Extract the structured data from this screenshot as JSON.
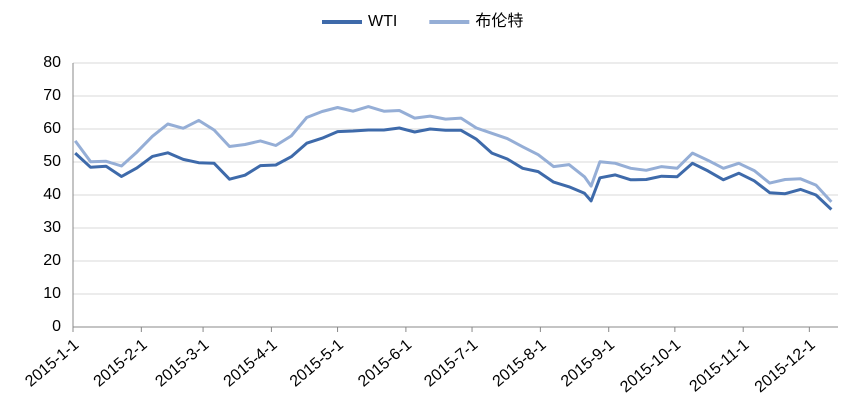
{
  "chart_data": {
    "type": "line",
    "x": [
      "2015-1-2",
      "2015-1-9",
      "2015-1-16",
      "2015-1-23",
      "2015-1-30",
      "2015-2-6",
      "2015-2-13",
      "2015-2-20",
      "2015-2-27",
      "2015-3-6",
      "2015-3-13",
      "2015-3-20",
      "2015-3-27",
      "2015-4-3",
      "2015-4-10",
      "2015-4-17",
      "2015-4-24",
      "2015-5-1",
      "2015-5-8",
      "2015-5-15",
      "2015-5-22",
      "2015-5-29",
      "2015-6-5",
      "2015-6-12",
      "2015-6-19",
      "2015-6-26",
      "2015-7-3",
      "2015-7-10",
      "2015-7-17",
      "2015-7-24",
      "2015-7-31",
      "2015-8-7",
      "2015-8-14",
      "2015-8-21",
      "2015-8-24",
      "2015-8-28",
      "2015-9-4",
      "2015-9-11",
      "2015-9-18",
      "2015-9-25",
      "2015-10-2",
      "2015-10-9",
      "2015-10-16",
      "2015-10-23",
      "2015-10-30",
      "2015-11-6",
      "2015-11-13",
      "2015-11-20",
      "2015-11-27",
      "2015-12-4",
      "2015-12-11"
    ],
    "series": [
      {
        "name": "WTI",
        "color": "#3e6aaa",
        "values": [
          52.7,
          48.4,
          48.7,
          45.6,
          48.2,
          51.7,
          52.8,
          50.8,
          49.8,
          49.6,
          44.8,
          46.0,
          48.9,
          49.1,
          51.6,
          55.7,
          57.2,
          59.2,
          59.4,
          59.7,
          59.7,
          60.3,
          59.1,
          60.0,
          59.6,
          59.6,
          56.9,
          52.7,
          50.9,
          48.1,
          47.1,
          43.9,
          42.5,
          40.5,
          38.2,
          45.2,
          46.1,
          44.6,
          44.7,
          45.7,
          45.5,
          49.6,
          47.3,
          44.6,
          46.6,
          44.3,
          40.7,
          40.4,
          41.7,
          40.0,
          35.6
        ]
      },
      {
        "name": "布伦特",
        "color": "#95aed6",
        "values": [
          56.4,
          50.1,
          50.2,
          48.8,
          53.0,
          57.8,
          61.5,
          60.2,
          62.6,
          59.7,
          54.7,
          55.3,
          56.4,
          55.0,
          57.9,
          63.5,
          65.3,
          66.5,
          65.4,
          66.8,
          65.4,
          65.6,
          63.3,
          63.9,
          63.0,
          63.3,
          60.3,
          58.7,
          57.1,
          54.6,
          52.2,
          48.6,
          49.2,
          45.5,
          42.7,
          50.1,
          49.6,
          48.1,
          47.5,
          48.6,
          48.1,
          52.7,
          50.5,
          48.1,
          49.6,
          47.4,
          43.6,
          44.7,
          44.9,
          43.0,
          37.9
        ]
      }
    ],
    "xlim": [
      "2015-1-1",
      "2015-12-14"
    ],
    "xticks": [
      "2015-1-1",
      "2015-2-1",
      "2015-3-1",
      "2015-4-1",
      "2015-5-1",
      "2015-6-1",
      "2015-7-1",
      "2015-8-1",
      "2015-9-1",
      "2015-10-1",
      "2015-11-1",
      "2015-12-1"
    ],
    "ylim": [
      0,
      80
    ],
    "yticks": [
      0,
      10,
      20,
      30,
      40,
      50,
      60,
      70,
      80
    ],
    "grid": true,
    "legend": "top"
  }
}
